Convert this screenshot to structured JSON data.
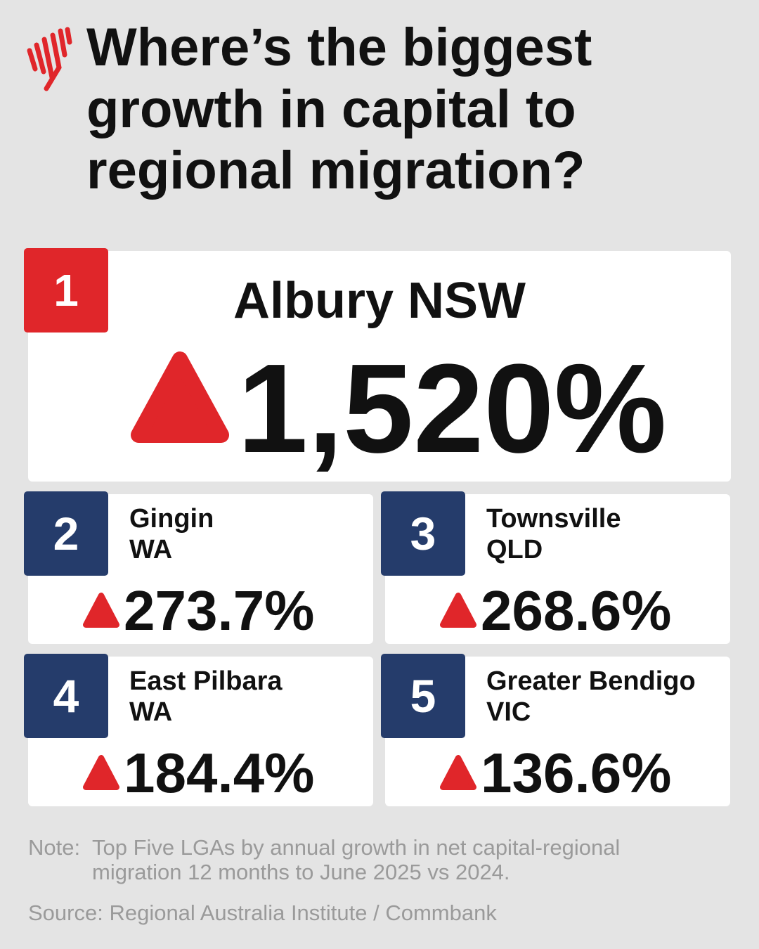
{
  "header": {
    "title_lines": [
      "Where’s the biggest",
      "growth in capital to",
      "regional migration?"
    ]
  },
  "entries": [
    {
      "rank": "1",
      "place_lines": [
        "Albury NSW"
      ],
      "value": "1,520%"
    },
    {
      "rank": "2",
      "place_lines": [
        "Gingin",
        "WA"
      ],
      "value": "273.7%"
    },
    {
      "rank": "3",
      "place_lines": [
        "Townsville",
        "QLD"
      ],
      "value": "268.6%"
    },
    {
      "rank": "4",
      "place_lines": [
        "East Pilbara",
        "WA"
      ],
      "value": "184.4%"
    },
    {
      "rank": "5",
      "place_lines": [
        "Greater Bendigo",
        "VIC"
      ],
      "value": "136.6%"
    }
  ],
  "footer": {
    "note_label": "Note:",
    "note_lines": [
      "Top Five LGAs by annual growth in net capital-regional",
      "migration 12 months to June 2025 vs 2024."
    ],
    "source": "Source: Regional Australia Institute / Commbank"
  }
}
